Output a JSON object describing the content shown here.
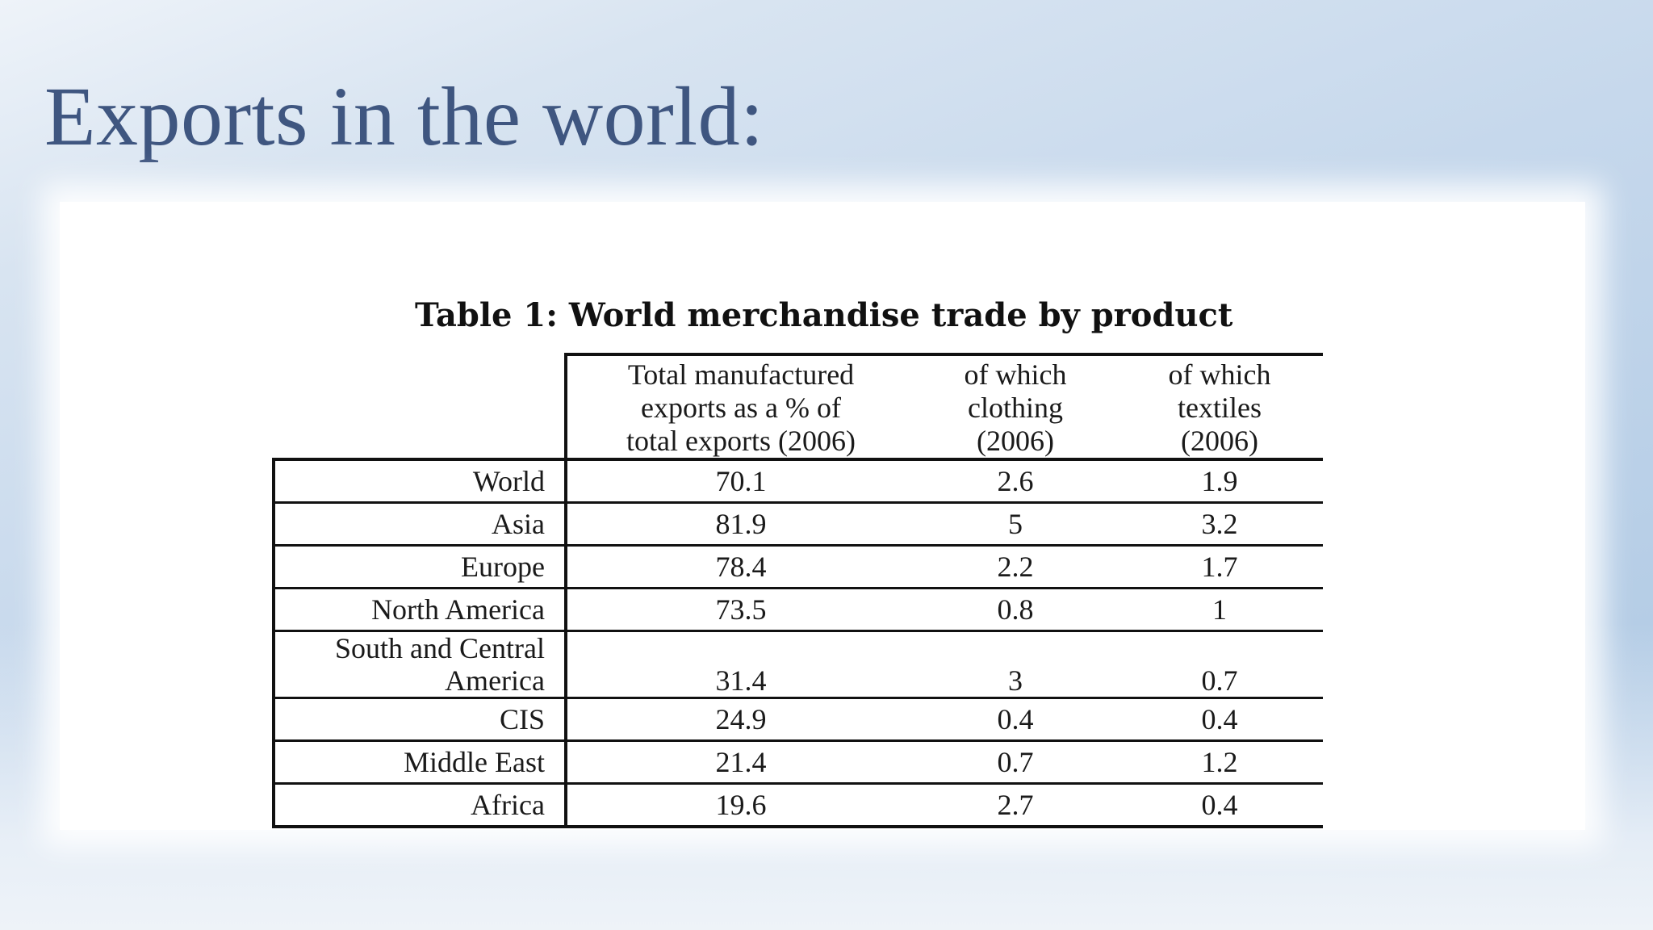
{
  "slide": {
    "title": "Exports in the world:"
  },
  "table": {
    "caption": "Table 1: World merchandise trade by product",
    "headers": {
      "total": [
        "Total manufactured",
        "exports as a  % of",
        "total exports  (2006)"
      ],
      "clothing": [
        "of which",
        "clothing",
        "(2006)"
      ],
      "textiles": [
        "of which",
        "textiles",
        "(2006)"
      ]
    },
    "rows": [
      {
        "region": "World",
        "total": "70.1",
        "clothing": "2.6",
        "textiles": "1.9"
      },
      {
        "region": "Asia",
        "total": "81.9",
        "clothing": "5",
        "textiles": "3.2"
      },
      {
        "region": "Europe",
        "total": "78.4",
        "clothing": "2.2",
        "textiles": "1.7"
      },
      {
        "region": "North America",
        "total": "73.5",
        "clothing": "0.8",
        "textiles": "1"
      },
      {
        "region_lines": [
          "South and Central",
          "America"
        ],
        "total": "31.4",
        "clothing": "3",
        "textiles": "0.7"
      },
      {
        "region": "CIS",
        "total": "24.9",
        "clothing": "0.4",
        "textiles": "0.4"
      },
      {
        "region": "Middle East",
        "total": "21.4",
        "clothing": "0.7",
        "textiles": "1.2"
      },
      {
        "region": "Africa",
        "total": "19.6",
        "clothing": "2.7",
        "textiles": "0.4"
      }
    ]
  }
}
